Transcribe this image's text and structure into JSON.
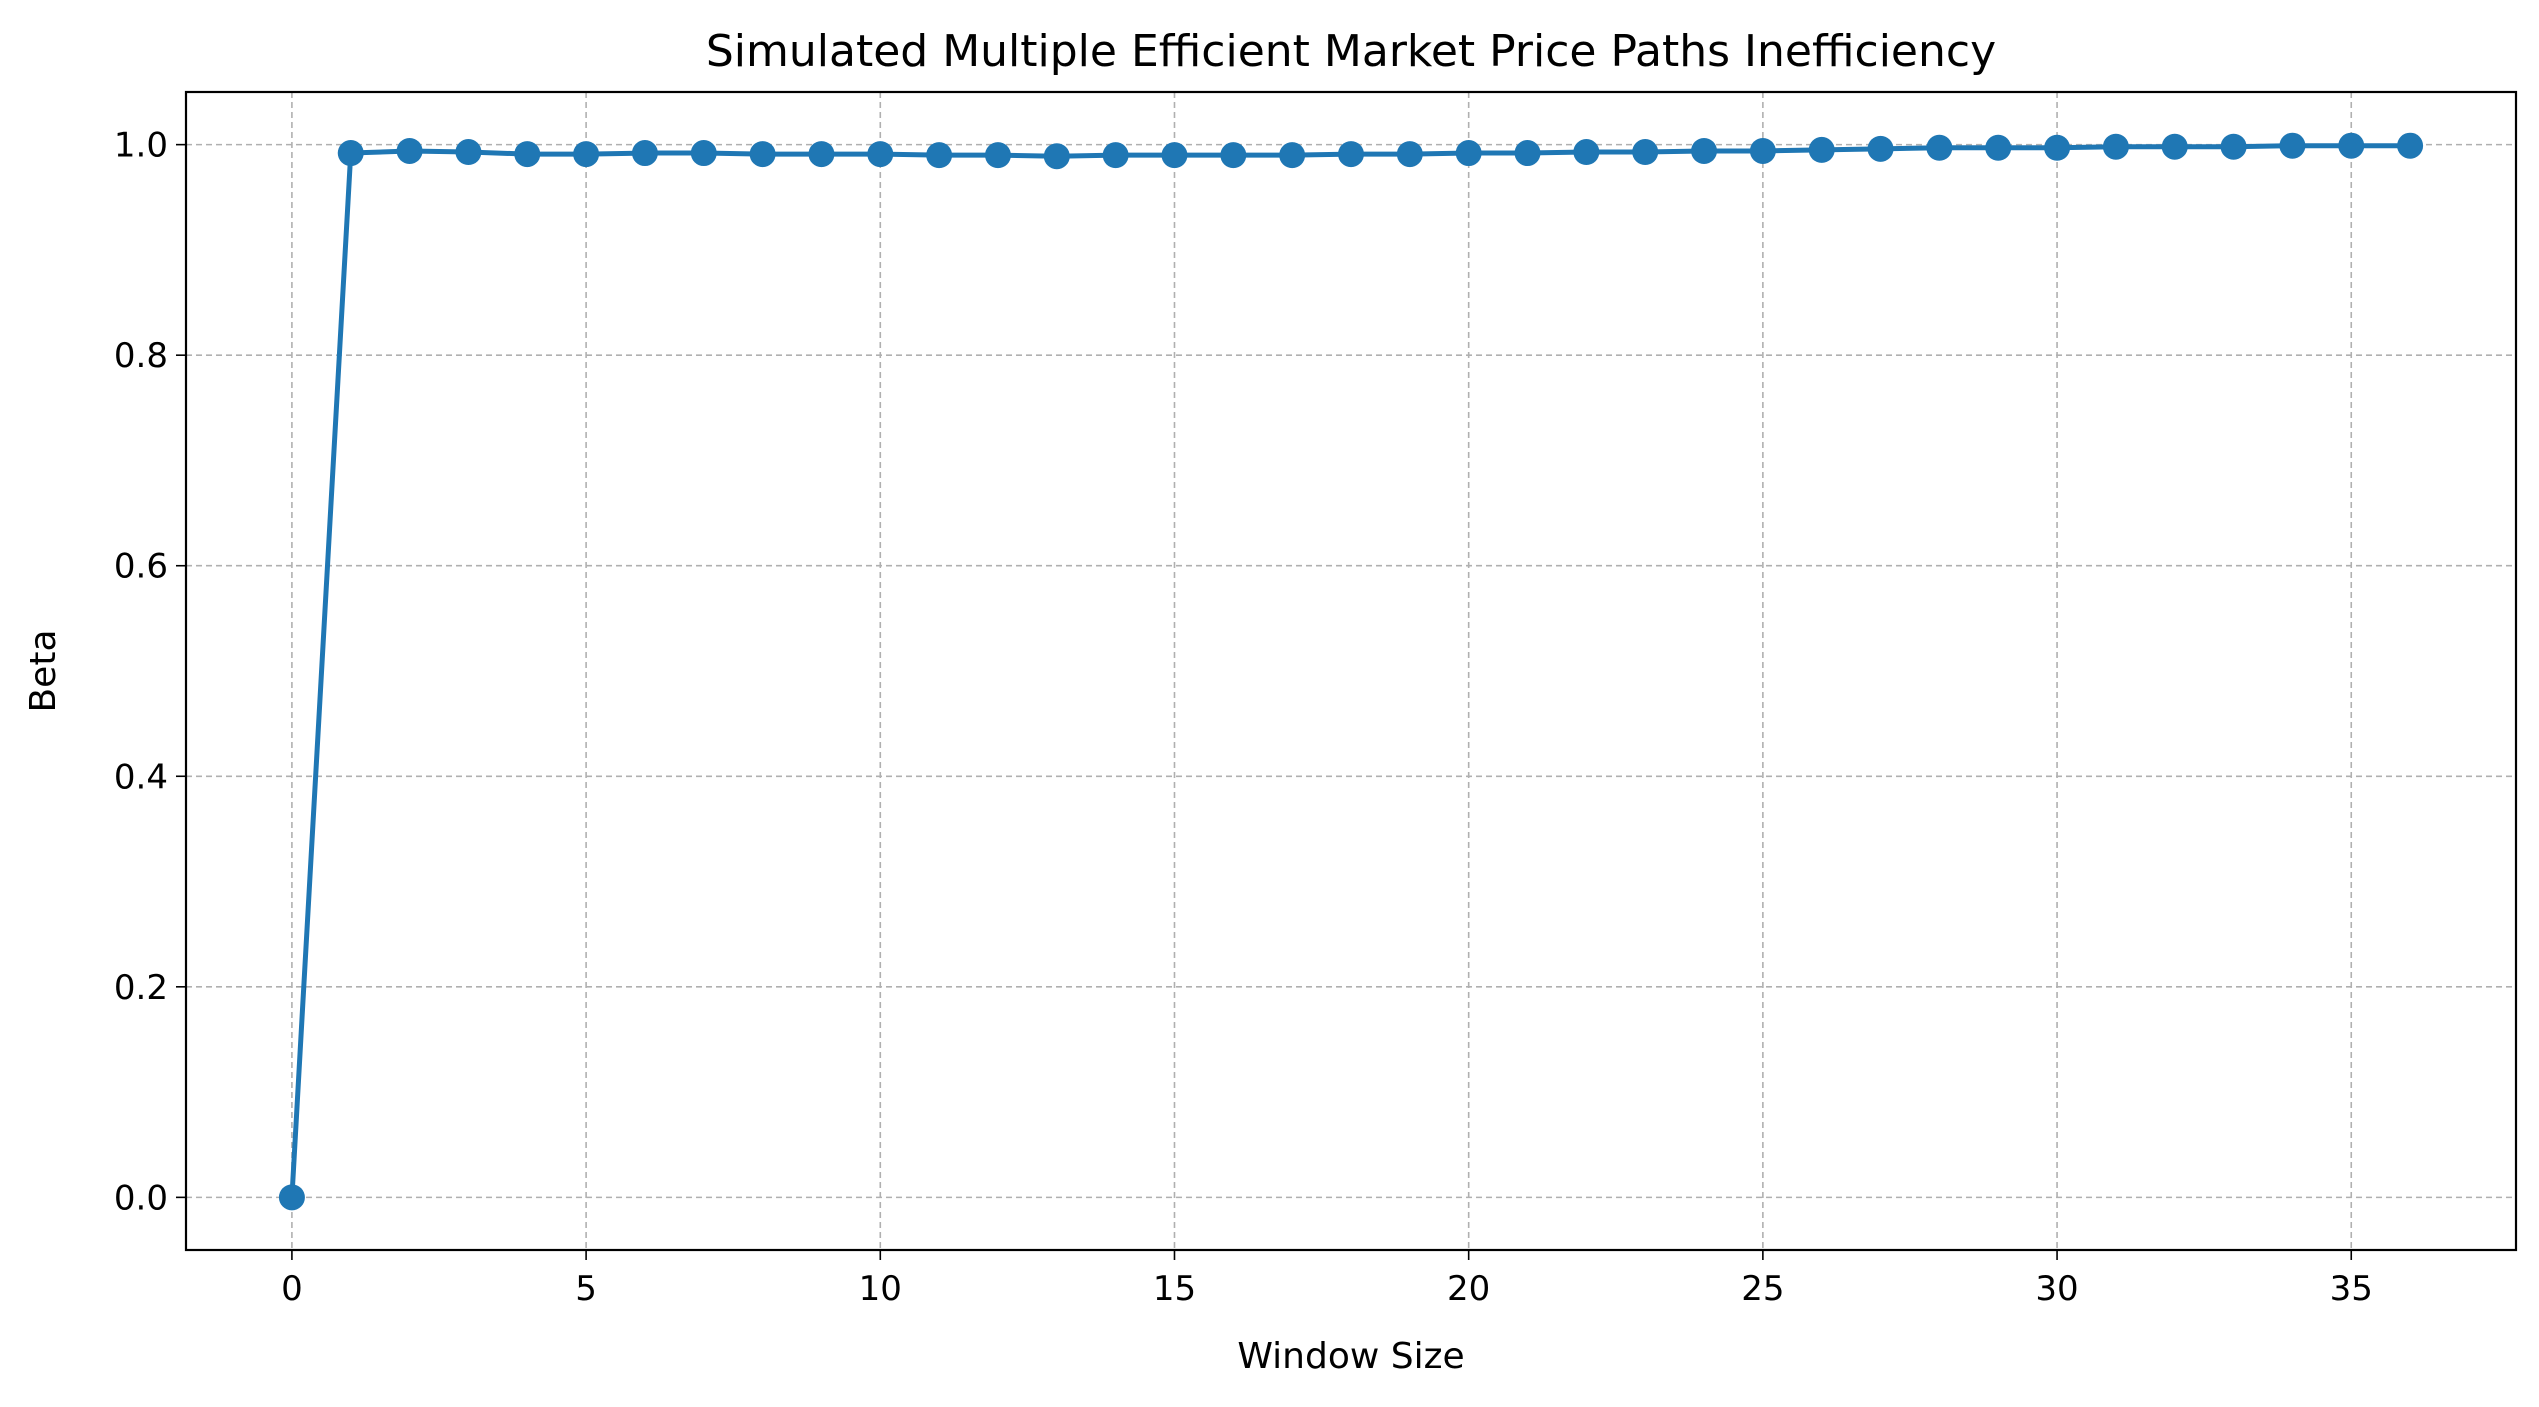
{
  "chart_data": {
    "type": "line",
    "title": "Simulated Multiple Efficient Market Price Paths Inefficiency",
    "xlabel": "Window Size",
    "ylabel": "Beta",
    "xlim": [
      -1.8,
      37.8
    ],
    "ylim": [
      -0.05,
      1.05
    ],
    "xticks": [
      0,
      5,
      10,
      15,
      20,
      25,
      30,
      35
    ],
    "xtick_labels": [
      "0",
      "5",
      "10",
      "15",
      "20",
      "25",
      "30",
      "35"
    ],
    "yticks": [
      0.0,
      0.2,
      0.4,
      0.6,
      0.8,
      1.0
    ],
    "ytick_labels": [
      "0.0",
      "0.2",
      "0.4",
      "0.6",
      "0.8",
      "1.0"
    ],
    "grid": true,
    "series": [
      {
        "color": "#1f77b4",
        "marker": "circle",
        "x": [
          0,
          1,
          2,
          3,
          4,
          5,
          6,
          7,
          8,
          9,
          10,
          11,
          12,
          13,
          14,
          15,
          16,
          17,
          18,
          19,
          20,
          21,
          22,
          23,
          24,
          25,
          26,
          27,
          28,
          29,
          30,
          31,
          32,
          33,
          34,
          35,
          36
        ],
        "y": [
          0.0,
          0.992,
          0.994,
          0.993,
          0.991,
          0.991,
          0.992,
          0.992,
          0.991,
          0.991,
          0.991,
          0.99,
          0.99,
          0.989,
          0.99,
          0.99,
          0.99,
          0.99,
          0.991,
          0.991,
          0.992,
          0.992,
          0.993,
          0.993,
          0.994,
          0.994,
          0.995,
          0.996,
          0.997,
          0.997,
          0.997,
          0.998,
          0.998,
          0.998,
          0.999,
          0.999,
          0.999
        ]
      }
    ]
  }
}
